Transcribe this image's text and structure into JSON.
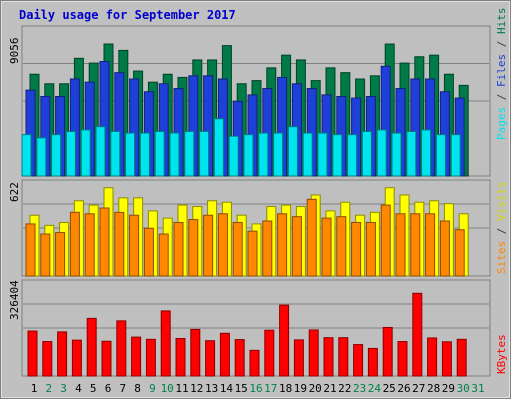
{
  "chart_data": [
    {
      "type": "bar",
      "title": "Daily usage for September 2017",
      "categories": [
        "1",
        "2",
        "3",
        "4",
        "5",
        "6",
        "7",
        "8",
        "9",
        "10",
        "11",
        "12",
        "13",
        "14",
        "15",
        "16",
        "17",
        "18",
        "19",
        "20",
        "21",
        "22",
        "23",
        "24",
        "25",
        "26",
        "27",
        "28",
        "29",
        "30",
        "31"
      ],
      "weekend_days": [
        "2",
        "3",
        "9",
        "10",
        "16",
        "17",
        "23",
        "24",
        "30",
        "31"
      ],
      "y_max_label": "9056",
      "ylim": [
        0,
        9056
      ],
      "series": [
        {
          "name": "Hits",
          "color": "#007A47",
          "values": [
            6400,
            5800,
            5800,
            7400,
            7100,
            8300,
            7900,
            6600,
            5900,
            6400,
            6200,
            7300,
            7300,
            8200,
            5800,
            6000,
            6800,
            7600,
            7300,
            6000,
            6800,
            6500,
            6100,
            6300,
            8300,
            7100,
            7500,
            7600,
            6400,
            5700,
            null
          ]
        },
        {
          "name": "Files",
          "color": "#1E3FD8",
          "values": [
            5400,
            5000,
            5000,
            6100,
            5900,
            7200,
            6500,
            6100,
            5300,
            5800,
            5500,
            6300,
            6300,
            6100,
            4700,
            5100,
            5500,
            6200,
            5800,
            5500,
            5100,
            5000,
            4900,
            5000,
            6900,
            5500,
            6100,
            6100,
            5300,
            4900,
            null
          ]
        },
        {
          "name": "Pages",
          "color": "#00E4EF",
          "values": [
            2600,
            2400,
            2600,
            2800,
            2900,
            3100,
            2800,
            2700,
            2700,
            2800,
            2700,
            2800,
            2800,
            3600,
            2500,
            2600,
            2700,
            2700,
            3100,
            2700,
            2700,
            2600,
            2600,
            2800,
            2900,
            2700,
            2800,
            2900,
            2600,
            2600,
            null
          ]
        }
      ]
    },
    {
      "type": "bar",
      "y_max_label": "622",
      "ylim": [
        0,
        622
      ],
      "series": [
        {
          "name": "Visits",
          "color": "#FFFF00",
          "values": [
            420,
            350,
            370,
            520,
            490,
            610,
            540,
            540,
            450,
            400,
            490,
            480,
            520,
            510,
            420,
            360,
            480,
            490,
            480,
            560,
            450,
            510,
            420,
            440,
            610,
            560,
            510,
            520,
            500,
            430,
            null
          ]
        },
        {
          "name": "Sites",
          "color": "#FF8800",
          "values": [
            360,
            290,
            300,
            440,
            430,
            470,
            440,
            420,
            330,
            290,
            370,
            390,
            420,
            430,
            370,
            310,
            380,
            430,
            410,
            530,
            400,
            410,
            370,
            370,
            490,
            430,
            430,
            430,
            380,
            320,
            null
          ]
        }
      ]
    },
    {
      "type": "bar",
      "y_max_label": "326404",
      "ylim": [
        0,
        326404
      ],
      "series": [
        {
          "name": "KBytes",
          "color": "#FF0000",
          "values": [
            163000,
            125000,
            160000,
            130000,
            209000,
            126000,
            200000,
            141000,
            133000,
            236000,
            136000,
            169000,
            128000,
            155000,
            132000,
            93000,
            166000,
            257000,
            131000,
            167000,
            139000,
            139000,
            114000,
            100000,
            176000,
            125000,
            300000,
            138000,
            124000,
            133000,
            null
          ]
        }
      ]
    }
  ]
}
